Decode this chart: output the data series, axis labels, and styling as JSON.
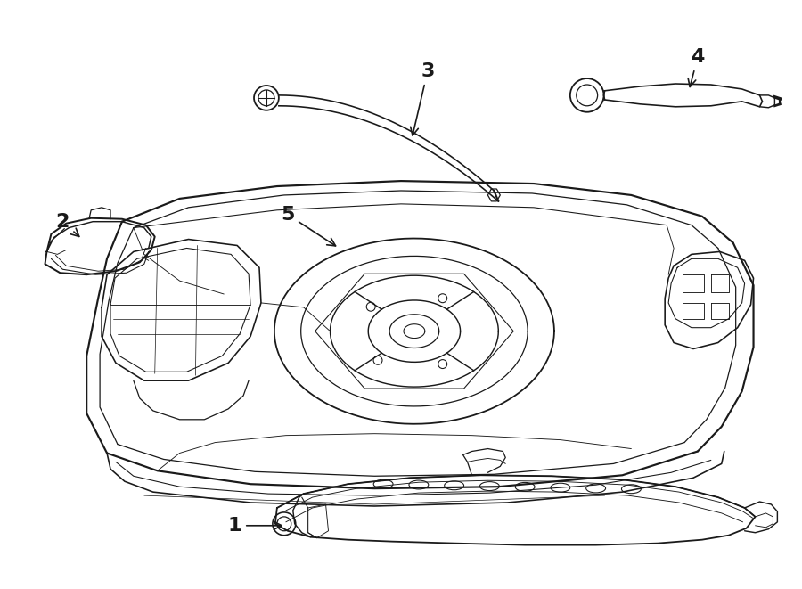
{
  "background_color": "#ffffff",
  "line_color": "#1a1a1a",
  "lw": 1.3,
  "fig_width": 9.0,
  "fig_height": 6.61,
  "dpi": 100
}
